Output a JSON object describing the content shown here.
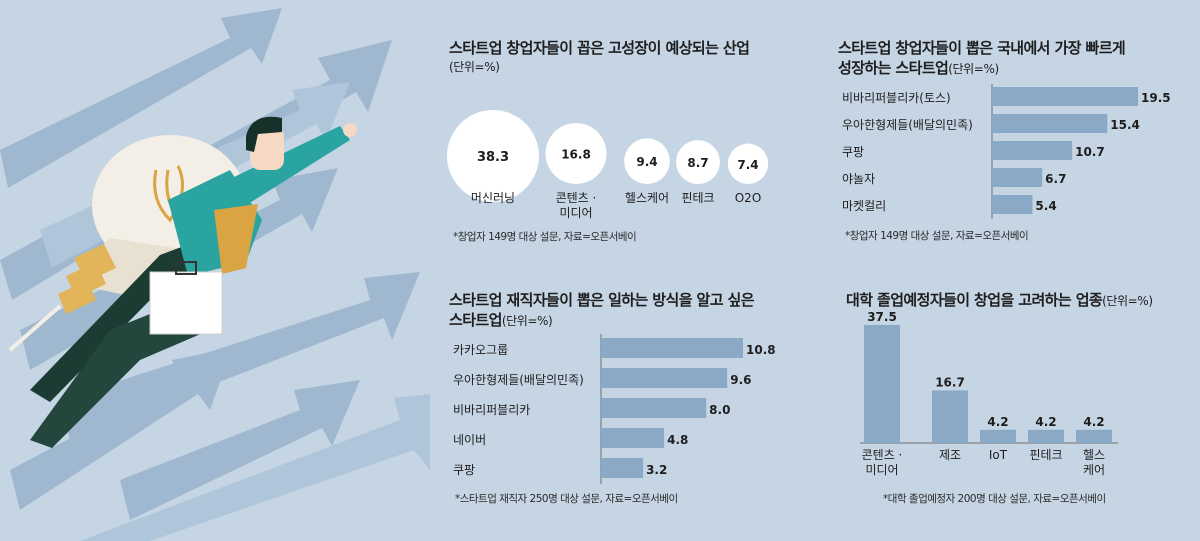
{
  "colors": {
    "background": "#c5d5e4",
    "bar": "#8aa9c7",
    "bubble": "#ffffff",
    "text": "#1e1e1e"
  },
  "panel1": {
    "title": "스타트업 창업자들이 꼽은 고성장이 예상되는 산업",
    "unit": "(단위=%)",
    "note": "*창업자 149명 대상 설문, 자료=오픈서베이"
  },
  "panel2": {
    "title_line1": "스타트업 창업자들이 뽑은 국내에서 가장 빠르게",
    "title_line2": "성장하는 스타트업",
    "unit": "(단위=%)",
    "note": "*창업자 149명 대상 설문, 자료=오픈서베이"
  },
  "panel3": {
    "title_line1": "스타트업 재직자들이 뽑은 일하는 방식을 알고 싶은",
    "title_line2": "스타트업",
    "unit": "(단위=%)",
    "note": "*스타트업 재직자 250명 대상 설문, 자료=오픈서베이"
  },
  "panel4": {
    "title": "대학 졸업예정자들이 창업을 고려하는 업종",
    "unit": "(단위=%)",
    "note": "*대학 졸업예정자 200명 대상 설문, 자료=오픈서베이"
  },
  "chart_data": [
    {
      "type": "bubble",
      "categories": [
        [
          "머신러닝"
        ],
        [
          "콘텐츠 ·",
          "미디어"
        ],
        [
          "헬스케어"
        ],
        [
          "핀테크"
        ],
        [
          "O2O"
        ]
      ],
      "values": [
        38.3,
        16.8,
        9.4,
        8.7,
        7.4
      ],
      "value_labels": [
        "38.3",
        "16.8",
        "9.4",
        "8.7",
        "7.4"
      ]
    },
    {
      "type": "bar",
      "orientation": "horizontal",
      "categories": [
        "비바리퍼블리카(토스)",
        "우아한형제들(배달의민족)",
        "쿠팡",
        "야놀자",
        "마켓컬리"
      ],
      "values": [
        19.5,
        15.4,
        10.7,
        6.7,
        5.4
      ],
      "value_labels": [
        "19.5",
        "15.4",
        "10.7",
        "6.7",
        "5.4"
      ]
    },
    {
      "type": "bar",
      "orientation": "horizontal",
      "categories": [
        "카카오그룹",
        "우아한형제들(배달의민족)",
        "비바리퍼블리카",
        "네이버",
        "쿠팡"
      ],
      "values": [
        10.8,
        9.6,
        8.0,
        4.8,
        3.2
      ],
      "value_labels": [
        "10.8",
        "9.6",
        "8.0",
        "4.8",
        "3.2"
      ]
    },
    {
      "type": "bar",
      "orientation": "vertical",
      "categories": [
        [
          "콘텐츠 ·",
          "미디어"
        ],
        [
          "제조"
        ],
        [
          "IoT"
        ],
        [
          "핀테크"
        ],
        [
          "헬스",
          "케어"
        ]
      ],
      "values": [
        37.5,
        16.7,
        4.2,
        4.2,
        4.2
      ],
      "value_labels": [
        "37.5",
        "16.7",
        "4.2",
        "4.2",
        "4.2"
      ]
    }
  ]
}
